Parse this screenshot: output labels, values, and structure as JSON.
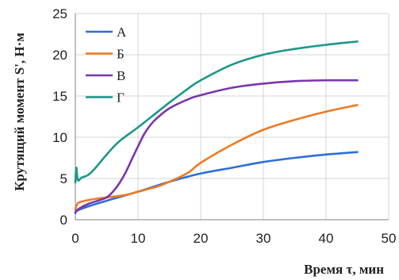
{
  "chart_data": {
    "type": "line",
    "xlabel": "Время τ, мин",
    "ylabel": "Крутящий момент S', Н·м",
    "xlim": [
      0,
      50
    ],
    "ylim": [
      0,
      25
    ],
    "x_ticks": [
      0,
      10,
      20,
      30,
      40,
      50
    ],
    "y_ticks": [
      0,
      5,
      10,
      15,
      20,
      25
    ],
    "grid": "both",
    "legend_position": "top-left",
    "series": [
      {
        "name": "А",
        "color": "#2e6fd6",
        "x": [
          0,
          0.3,
          2,
          5,
          10,
          15,
          20,
          25,
          30,
          35,
          40,
          45
        ],
        "y": [
          0.8,
          1.1,
          1.6,
          2.3,
          3.4,
          4.6,
          5.6,
          6.3,
          7.0,
          7.5,
          7.9,
          8.2
        ]
      },
      {
        "name": "Б",
        "color": "#ee7a22",
        "x": [
          0,
          0.3,
          1,
          3,
          5,
          8,
          10,
          13,
          15,
          18,
          20,
          25,
          30,
          35,
          40,
          45
        ],
        "y": [
          1.2,
          1.9,
          2.2,
          2.5,
          2.7,
          3.0,
          3.4,
          4.0,
          4.6,
          5.7,
          6.9,
          9.1,
          10.9,
          12.1,
          13.1,
          13.9
        ]
      },
      {
        "name": "В",
        "color": "#7a36ad",
        "x": [
          0,
          0.5,
          2,
          4,
          5,
          6,
          7,
          8,
          9,
          10,
          11,
          12,
          13,
          15,
          18,
          20,
          25,
          30,
          35,
          40,
          45
        ],
        "y": [
          0.9,
          1.3,
          1.9,
          2.4,
          2.7,
          3.4,
          4.4,
          5.7,
          7.3,
          8.9,
          10.4,
          11.5,
          12.3,
          13.5,
          14.6,
          15.1,
          16.0,
          16.5,
          16.8,
          16.9,
          16.9
        ]
      },
      {
        "name": "Г",
        "color": "#1d958a",
        "x": [
          0,
          0.15,
          0.4,
          1,
          2,
          3,
          5,
          7,
          10,
          13,
          15,
          18,
          20,
          25,
          30,
          35,
          40,
          45
        ],
        "y": [
          4.5,
          6.3,
          4.8,
          5.1,
          5.4,
          6.1,
          7.9,
          9.5,
          11.2,
          13.0,
          14.2,
          15.9,
          16.9,
          18.8,
          20.0,
          20.7,
          21.2,
          21.6
        ]
      }
    ]
  }
}
